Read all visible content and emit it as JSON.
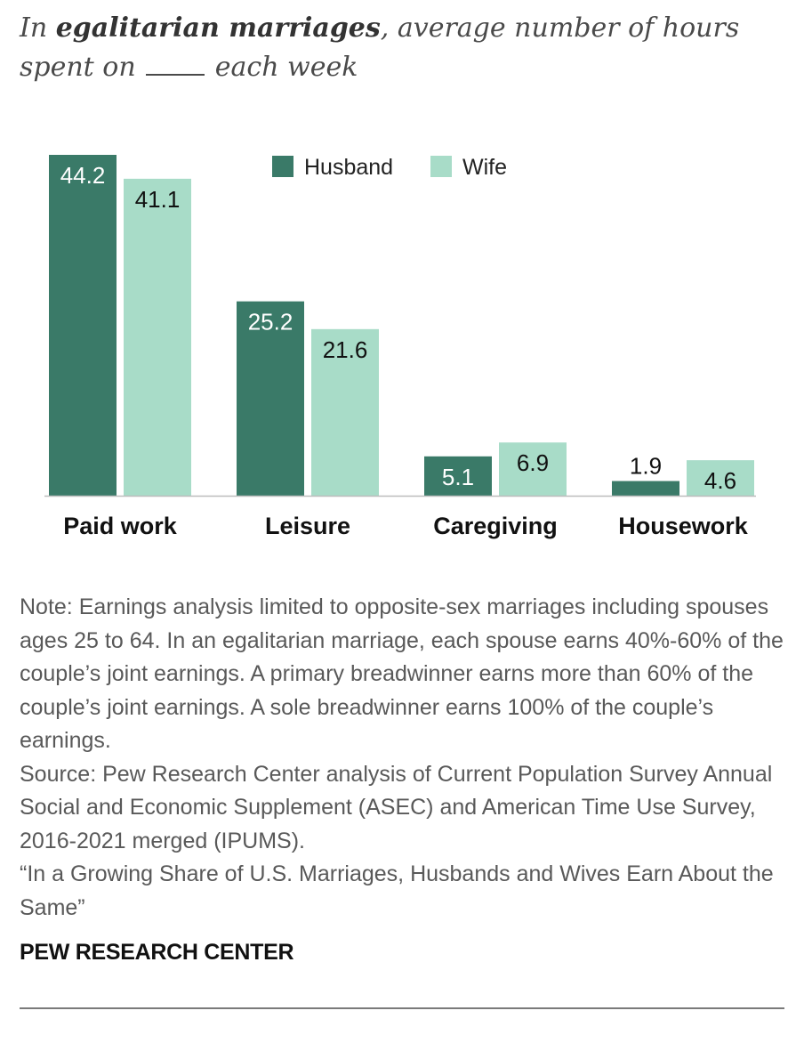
{
  "title": {
    "prefix": "In ",
    "emphasis": "egalitarian marriages",
    "suffix": ", average number of hours",
    "line2_start": "spent on",
    "line2_end": "each week"
  },
  "chart_data": {
    "type": "bar",
    "categories": [
      "Paid work",
      "Leisure",
      "Caregiving",
      "Housework"
    ],
    "series": [
      {
        "name": "Husband",
        "values": [
          44.2,
          25.2,
          5.1,
          1.9
        ],
        "color": "#3a7a68"
      },
      {
        "name": "Wife",
        "values": [
          41.1,
          21.6,
          6.9,
          4.6
        ],
        "color": "#a8dcc8"
      }
    ],
    "data_labels": {
      "Husband": [
        "44.2",
        "25.2",
        "5.1",
        "1.9"
      ],
      "Wife": [
        "41.1",
        "21.6",
        "6.9",
        "4.6"
      ]
    },
    "ylim": [
      0,
      44.2
    ],
    "legend_position": "top-center",
    "grid": false
  },
  "note": {
    "lines": [
      "Note: Earnings analysis limited to opposite-sex marriages including spouses ages 25 to 64. In an egalitarian marriage, each spouse earns 40%-60% of the couple’s joint earnings. A primary breadwinner earns more than 60% of the couple’s joint earnings. A sole breadwinner earns 100% of the couple’s earnings.",
      "Source: Pew Research Center analysis of Current Population Survey Annual Social and Economic Supplement (ASEC) and American Time Use Survey, 2016-2021 merged (IPUMS).",
      "“In a Growing Share of U.S. Marriages, Husbands and Wives Earn About the Same”"
    ]
  },
  "brand": "PEW RESEARCH CENTER"
}
